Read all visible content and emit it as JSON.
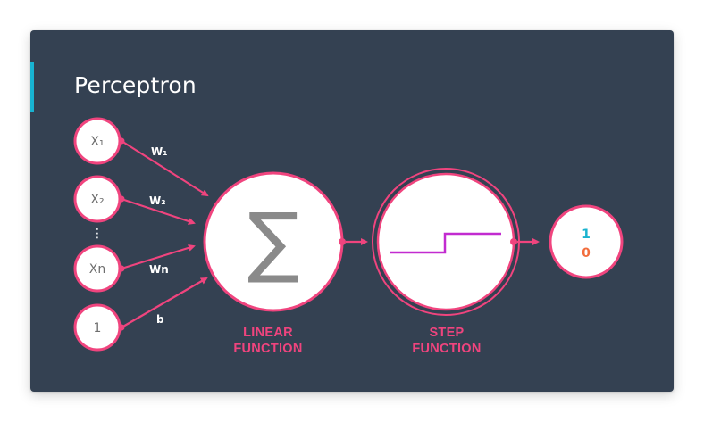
{
  "title": "Perceptron",
  "inputs": [
    {
      "label": "X₁"
    },
    {
      "label": "X₂"
    },
    {
      "label": "Xn"
    },
    {
      "label": "1"
    }
  ],
  "ellipsis": "⋮",
  "weights": [
    "W₁",
    "W₂",
    "Wn",
    "b"
  ],
  "linear": {
    "symbol": "∑",
    "label_line1": "LINEAR",
    "label_line2": "FUNCTION"
  },
  "step": {
    "label_line1": "STEP",
    "label_line2": "FUNCTION"
  },
  "output": {
    "one": "1",
    "zero": "0"
  },
  "colors": {
    "background": "#344152",
    "accent": "#18b3d2",
    "connector": "#f0447e",
    "step_line": "#c22bd0",
    "output_one": "#1ab3cf",
    "output_zero": "#f26d3d"
  }
}
